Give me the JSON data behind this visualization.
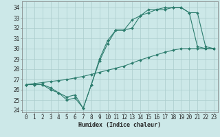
{
  "title": "",
  "xlabel": "Humidex (Indice chaleur)",
  "bg_color": "#cce8e8",
  "grid_color": "#aacccc",
  "line_color": "#2d7d6e",
  "xlim": [
    -0.5,
    23.5
  ],
  "ylim": [
    23.8,
    34.6
  ],
  "xticks": [
    0,
    1,
    2,
    3,
    4,
    5,
    6,
    7,
    8,
    9,
    10,
    11,
    12,
    13,
    14,
    15,
    16,
    17,
    18,
    19,
    20,
    21,
    22,
    23
  ],
  "yticks": [
    24,
    25,
    26,
    27,
    28,
    29,
    30,
    31,
    32,
    33,
    34
  ],
  "line1_x": [
    0,
    1,
    2,
    3,
    4,
    5,
    6,
    7,
    8,
    9,
    10,
    11,
    12,
    13,
    14,
    15,
    16,
    17,
    18,
    19,
    20,
    21,
    22,
    23
  ],
  "line1_y": [
    26.5,
    26.5,
    26.5,
    26.0,
    25.7,
    25.0,
    25.2,
    24.2,
    26.5,
    29.0,
    30.8,
    31.8,
    31.8,
    32.8,
    33.2,
    33.8,
    33.8,
    34.0,
    34.0,
    34.0,
    33.5,
    33.5,
    30.2,
    30.0
  ],
  "line2_x": [
    0,
    1,
    2,
    3,
    4,
    5,
    6,
    7,
    8,
    9,
    10,
    11,
    12,
    13,
    14,
    15,
    16,
    17,
    18,
    19,
    20,
    21,
    22,
    23
  ],
  "line2_y": [
    26.5,
    26.5,
    26.5,
    26.2,
    25.7,
    25.3,
    25.5,
    24.2,
    26.5,
    28.8,
    30.5,
    31.8,
    31.8,
    32.0,
    33.2,
    33.5,
    33.8,
    33.8,
    34.0,
    34.0,
    33.5,
    30.2,
    30.0,
    30.0
  ],
  "line3_x": [
    0,
    1,
    2,
    3,
    4,
    5,
    6,
    7,
    8,
    9,
    10,
    11,
    12,
    13,
    14,
    15,
    16,
    17,
    18,
    19,
    20,
    21,
    22,
    23
  ],
  "line3_y": [
    26.5,
    26.6,
    26.7,
    26.8,
    26.9,
    27.0,
    27.15,
    27.3,
    27.5,
    27.7,
    27.9,
    28.1,
    28.3,
    28.6,
    28.9,
    29.15,
    29.4,
    29.65,
    29.85,
    30.0,
    30.0,
    30.0,
    30.0,
    30.0
  ],
  "tick_fontsize": 5.5,
  "xlabel_fontsize": 6.0,
  "marker_size": 2.0,
  "linewidth": 0.8
}
